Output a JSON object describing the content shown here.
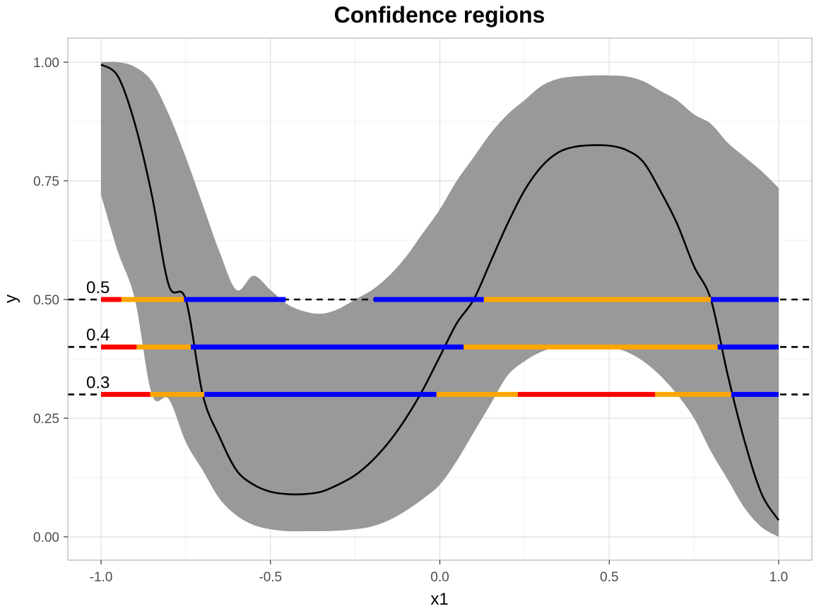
{
  "chart_data": {
    "type": "line",
    "title": "Confidence regions",
    "xlabel": "x1",
    "ylabel": "y",
    "xlim": [
      -1.0,
      1.0
    ],
    "ylim": [
      0.0,
      1.0
    ],
    "x_ticks": [
      "-1.0",
      "-0.5",
      "0.0",
      "0.5",
      "1.0"
    ],
    "y_ticks": [
      "0.00",
      "0.25",
      "0.50",
      "0.75",
      "1.00"
    ],
    "grid": true,
    "legend": "none",
    "mean_curve": {
      "x": [
        -1.0,
        -0.95,
        -0.9,
        -0.85,
        -0.8,
        -0.75,
        -0.7,
        -0.65,
        -0.6,
        -0.55,
        -0.5,
        -0.45,
        -0.4,
        -0.35,
        -0.3,
        -0.25,
        -0.2,
        -0.15,
        -0.1,
        -0.05,
        0.0,
        0.05,
        0.1,
        0.15,
        0.2,
        0.25,
        0.3,
        0.35,
        0.4,
        0.45,
        0.5,
        0.55,
        0.6,
        0.65,
        0.7,
        0.75,
        0.8,
        0.85,
        0.9,
        0.95,
        1.0
      ],
      "y": [
        0.995,
        0.97,
        0.87,
        0.72,
        0.53,
        0.5,
        0.3,
        0.21,
        0.14,
        0.11,
        0.095,
        0.09,
        0.09,
        0.095,
        0.11,
        0.13,
        0.16,
        0.2,
        0.25,
        0.31,
        0.38,
        0.45,
        0.5,
        0.58,
        0.66,
        0.73,
        0.78,
        0.81,
        0.822,
        0.825,
        0.824,
        0.815,
        0.79,
        0.73,
        0.66,
        0.57,
        0.5,
        0.34,
        0.2,
        0.09,
        0.035
      ]
    },
    "confidence_band": {
      "x": [
        -1.0,
        -0.95,
        -0.9,
        -0.85,
        -0.8,
        -0.75,
        -0.7,
        -0.65,
        -0.6,
        -0.55,
        -0.5,
        -0.45,
        -0.4,
        -0.35,
        -0.3,
        -0.25,
        -0.2,
        -0.15,
        -0.1,
        -0.05,
        0.0,
        0.05,
        0.1,
        0.15,
        0.2,
        0.25,
        0.3,
        0.35,
        0.4,
        0.45,
        0.5,
        0.55,
        0.6,
        0.65,
        0.7,
        0.75,
        0.8,
        0.85,
        0.9,
        0.95,
        1.0
      ],
      "upper": [
        1.0,
        1.0,
        0.99,
        0.96,
        0.89,
        0.8,
        0.7,
        0.6,
        0.52,
        0.55,
        0.52,
        0.49,
        0.475,
        0.47,
        0.48,
        0.5,
        0.52,
        0.55,
        0.59,
        0.64,
        0.69,
        0.75,
        0.8,
        0.85,
        0.89,
        0.92,
        0.95,
        0.965,
        0.97,
        0.972,
        0.972,
        0.97,
        0.96,
        0.94,
        0.92,
        0.89,
        0.87,
        0.83,
        0.8,
        0.77,
        0.735
      ],
      "lower": [
        0.72,
        0.6,
        0.5,
        0.3,
        0.29,
        0.2,
        0.14,
        0.08,
        0.045,
        0.025,
        0.016,
        0.012,
        0.012,
        0.012,
        0.013,
        0.016,
        0.022,
        0.035,
        0.055,
        0.08,
        0.11,
        0.16,
        0.22,
        0.28,
        0.34,
        0.37,
        0.39,
        0.4,
        0.4,
        0.4,
        0.4,
        0.39,
        0.37,
        0.34,
        0.3,
        0.25,
        0.18,
        0.12,
        0.06,
        0.02,
        0.0
      ]
    },
    "levels": [
      {
        "label": "0.5",
        "y": 0.5,
        "segments": [
          {
            "x0": -1.0,
            "x1": -0.94,
            "color": "#ff0000"
          },
          {
            "x0": -0.94,
            "x1": -0.755,
            "color": "#ffa500"
          },
          {
            "x0": -0.755,
            "x1": -0.455,
            "color": "#0000ff"
          },
          {
            "x0": -0.195,
            "x1": 0.13,
            "color": "#0000ff"
          },
          {
            "x0": 0.13,
            "x1": 0.8,
            "color": "#ffa500"
          },
          {
            "x0": 0.8,
            "x1": 1.0,
            "color": "#0000ff"
          }
        ]
      },
      {
        "label": "0.4",
        "y": 0.4,
        "segments": [
          {
            "x0": -1.0,
            "x1": -0.895,
            "color": "#ff0000"
          },
          {
            "x0": -0.895,
            "x1": -0.735,
            "color": "#ffa500"
          },
          {
            "x0": -0.735,
            "x1": 0.07,
            "color": "#0000ff"
          },
          {
            "x0": 0.07,
            "x1": 0.82,
            "color": "#ffa500"
          },
          {
            "x0": 0.82,
            "x1": 1.0,
            "color": "#0000ff"
          }
        ]
      },
      {
        "label": "0.3",
        "y": 0.3,
        "segments": [
          {
            "x0": -1.0,
            "x1": -0.855,
            "color": "#ff0000"
          },
          {
            "x0": -0.855,
            "x1": -0.695,
            "color": "#ffa500"
          },
          {
            "x0": -0.695,
            "x1": -0.01,
            "color": "#0000ff"
          },
          {
            "x0": -0.01,
            "x1": 0.23,
            "color": "#ffa500"
          },
          {
            "x0": 0.23,
            "x1": 0.635,
            "color": "#ff0000"
          },
          {
            "x0": 0.635,
            "x1": 0.86,
            "color": "#ffa500"
          },
          {
            "x0": 0.86,
            "x1": 1.0,
            "color": "#0000ff"
          }
        ]
      }
    ],
    "colors": {
      "band": "#999999",
      "curve": "#000000",
      "grid_major": "#dedede",
      "grid_minor": "#efefef",
      "panel_border": "#b3b3b3"
    }
  }
}
